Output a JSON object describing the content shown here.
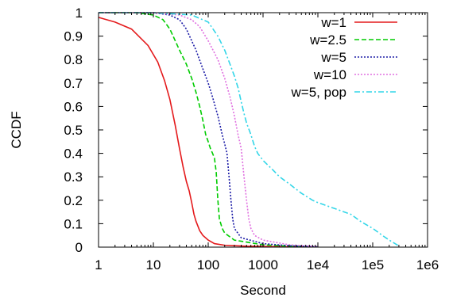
{
  "chart_data": {
    "type": "line",
    "xlabel": "Second",
    "ylabel": "CCDF",
    "xscale": "log",
    "xlim": [
      1,
      1000000
    ],
    "ylim": [
      0,
      1
    ],
    "grid": false,
    "legend_position": "top-right",
    "x_ticks": [
      {
        "value": 1,
        "label": "1"
      },
      {
        "value": 10,
        "label": "10"
      },
      {
        "value": 100,
        "label": "100"
      },
      {
        "value": 1000,
        "label": "1000"
      },
      {
        "value": 10000,
        "label": "1e4"
      },
      {
        "value": 100000,
        "label": "1e5"
      },
      {
        "value": 1000000,
        "label": "1e6"
      }
    ],
    "y_ticks": [
      {
        "value": 0,
        "label": "0"
      },
      {
        "value": 0.1,
        "label": "0.1"
      },
      {
        "value": 0.2,
        "label": "0.2"
      },
      {
        "value": 0.3,
        "label": "0.3"
      },
      {
        "value": 0.4,
        "label": "0.4"
      },
      {
        "value": 0.5,
        "label": "0.5"
      },
      {
        "value": 0.6,
        "label": "0.6"
      },
      {
        "value": 0.7,
        "label": "0.7"
      },
      {
        "value": 0.8,
        "label": "0.8"
      },
      {
        "value": 0.9,
        "label": "0.9"
      },
      {
        "value": 1,
        "label": "1"
      }
    ],
    "series": [
      {
        "name": "w=1",
        "color": "#e41a1c",
        "dash": "solid",
        "points": [
          [
            1,
            0.98
          ],
          [
            2,
            0.96
          ],
          [
            4,
            0.93
          ],
          [
            8,
            0.86
          ],
          [
            12,
            0.79
          ],
          [
            16,
            0.71
          ],
          [
            20,
            0.63
          ],
          [
            25,
            0.52
          ],
          [
            30,
            0.42
          ],
          [
            35,
            0.34
          ],
          [
            40,
            0.28
          ],
          [
            45,
            0.24
          ],
          [
            50,
            0.19
          ],
          [
            55,
            0.14
          ],
          [
            60,
            0.11
          ],
          [
            70,
            0.07
          ],
          [
            80,
            0.05
          ],
          [
            100,
            0.03
          ],
          [
            130,
            0.015
          ],
          [
            200,
            0.008
          ],
          [
            500,
            0.004
          ],
          [
            2000,
            0.002
          ],
          [
            10000,
            0.001
          ]
        ]
      },
      {
        "name": "w=2.5",
        "color": "#00cc00",
        "dash": "dashed",
        "points": [
          [
            1,
            1.0
          ],
          [
            5,
            1.0
          ],
          [
            10,
            0.99
          ],
          [
            15,
            0.97
          ],
          [
            20,
            0.93
          ],
          [
            30,
            0.84
          ],
          [
            40,
            0.78
          ],
          [
            50,
            0.72
          ],
          [
            60,
            0.66
          ],
          [
            70,
            0.6
          ],
          [
            80,
            0.54
          ],
          [
            90,
            0.48
          ],
          [
            100,
            0.45
          ],
          [
            110,
            0.42
          ],
          [
            120,
            0.4
          ],
          [
            130,
            0.38
          ],
          [
            140,
            0.32
          ],
          [
            150,
            0.2
          ],
          [
            160,
            0.12
          ],
          [
            180,
            0.08
          ],
          [
            200,
            0.06
          ],
          [
            300,
            0.03
          ],
          [
            1000,
            0.01
          ],
          [
            3000,
            0.004
          ],
          [
            10000,
            0.001
          ]
        ]
      },
      {
        "name": "w=5",
        "color": "#1a1aa6",
        "dash": "dotted",
        "points": [
          [
            1,
            1.0
          ],
          [
            10,
            1.0
          ],
          [
            20,
            0.99
          ],
          [
            30,
            0.97
          ],
          [
            40,
            0.93
          ],
          [
            50,
            0.88
          ],
          [
            60,
            0.84
          ],
          [
            80,
            0.76
          ],
          [
            100,
            0.7
          ],
          [
            120,
            0.64
          ],
          [
            150,
            0.56
          ],
          [
            180,
            0.48
          ],
          [
            200,
            0.44
          ],
          [
            220,
            0.4
          ],
          [
            240,
            0.3
          ],
          [
            260,
            0.2
          ],
          [
            280,
            0.12
          ],
          [
            300,
            0.08
          ],
          [
            400,
            0.04
          ],
          [
            1000,
            0.015
          ],
          [
            3000,
            0.006
          ],
          [
            10000,
            0.001
          ]
        ]
      },
      {
        "name": "w=10",
        "color": "#e070e0",
        "dash": "dotted",
        "points": [
          [
            1,
            1.0
          ],
          [
            10,
            1.0
          ],
          [
            30,
            0.99
          ],
          [
            50,
            0.97
          ],
          [
            70,
            0.94
          ],
          [
            100,
            0.88
          ],
          [
            150,
            0.8
          ],
          [
            200,
            0.72
          ],
          [
            250,
            0.64
          ],
          [
            300,
            0.56
          ],
          [
            350,
            0.48
          ],
          [
            400,
            0.42
          ],
          [
            450,
            0.3
          ],
          [
            500,
            0.2
          ],
          [
            550,
            0.12
          ],
          [
            600,
            0.08
          ],
          [
            700,
            0.05
          ],
          [
            1000,
            0.03
          ],
          [
            3000,
            0.01
          ],
          [
            10000,
            0.002
          ]
        ]
      },
      {
        "name": "w=5, pop",
        "color": "#33d6e8",
        "dash": "dashdot",
        "points": [
          [
            1,
            1.0
          ],
          [
            10,
            1.0
          ],
          [
            50,
            0.99
          ],
          [
            100,
            0.96
          ],
          [
            150,
            0.9
          ],
          [
            200,
            0.84
          ],
          [
            250,
            0.78
          ],
          [
            300,
            0.73
          ],
          [
            350,
            0.68
          ],
          [
            400,
            0.62
          ],
          [
            450,
            0.57
          ],
          [
            500,
            0.53
          ],
          [
            600,
            0.48
          ],
          [
            700,
            0.43
          ],
          [
            800,
            0.4
          ],
          [
            1000,
            0.37
          ],
          [
            1500,
            0.33
          ],
          [
            2000,
            0.3
          ],
          [
            3000,
            0.27
          ],
          [
            5000,
            0.23
          ],
          [
            8000,
            0.2
          ],
          [
            10000,
            0.19
          ],
          [
            20000,
            0.165
          ],
          [
            40000,
            0.14
          ],
          [
            60000,
            0.11
          ],
          [
            100000,
            0.08
          ],
          [
            150000,
            0.05
          ],
          [
            200000,
            0.03
          ],
          [
            300000,
            0.005
          ]
        ]
      }
    ]
  }
}
